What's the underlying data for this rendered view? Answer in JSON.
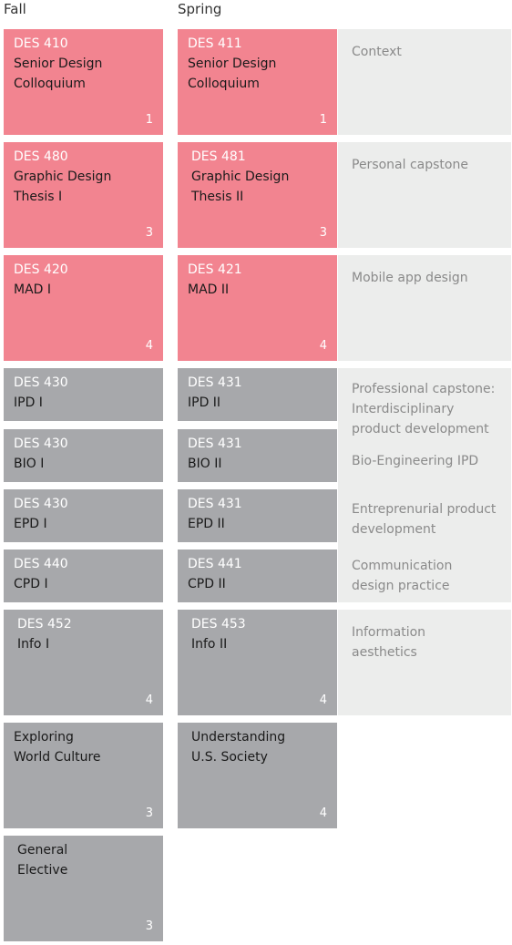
{
  "headers": {
    "fall": "Fall",
    "spring": "Spring"
  },
  "fall": [
    {
      "code": "DES 410",
      "name": "Senior Design\nColloquium",
      "credits": "1"
    },
    {
      "code": "DES 480",
      "name": "Graphic Design\nThesis I",
      "credits": "3"
    },
    {
      "code": "DES 420",
      "name": "MAD I",
      "credits": "4"
    },
    {
      "code": "DES 430",
      "name": "IPD I",
      "credits": ""
    },
    {
      "code": "DES 430",
      "name": "BIO I",
      "credits": ""
    },
    {
      "code": "DES 430",
      "name": "EPD I",
      "credits": ""
    },
    {
      "code": "DES 440",
      "name": "CPD I",
      "credits": ""
    },
    {
      "code": "DES 452",
      "name": "Info I",
      "credits": "4"
    },
    {
      "code": "",
      "name": "Exploring\nWorld Culture",
      "credits": "3"
    },
    {
      "code": "",
      "name": "General\nElective",
      "credits": "3"
    }
  ],
  "spring": [
    {
      "code": "DES 411",
      "name": "Senior Design\nColloquium",
      "credits": "1"
    },
    {
      "code": "DES 481",
      "name": "Graphic Design\nThesis II",
      "credits": "3"
    },
    {
      "code": "DES 421",
      "name": "MAD II",
      "credits": "4"
    },
    {
      "code": "DES 431",
      "name": "IPD II",
      "credits": ""
    },
    {
      "code": "DES 431",
      "name": "BIO II",
      "credits": ""
    },
    {
      "code": "DES 431",
      "name": "EPD II",
      "credits": ""
    },
    {
      "code": "DES 441",
      "name": "CPD II",
      "credits": ""
    },
    {
      "code": "DES 453",
      "name": "Info II",
      "credits": "4"
    },
    {
      "code": "",
      "name": "Understanding\nU.S. Society",
      "credits": "4"
    }
  ],
  "notes": [
    "Context",
    "Personal capstone",
    "Mobile app design",
    "Professional capstone:\nInterdisciplinary\nproduct development",
    "Bio-Engineering IPD",
    "Entreprenurial product\ndevelopment",
    "Communication\ndesign practice",
    "Information\naesthetics"
  ],
  "colors": {
    "required_major": "#f28490",
    "track_and_general": "#a7a8ab",
    "note_band": "#ecedec"
  }
}
